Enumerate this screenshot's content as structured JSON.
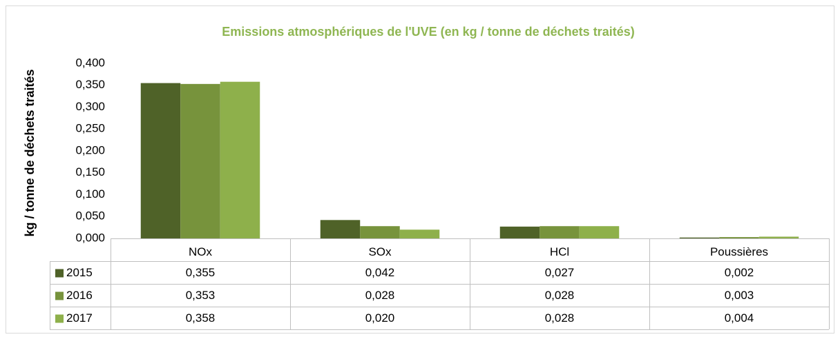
{
  "chart_data": {
    "type": "bar",
    "title": "Emissions atmosphériques de l'UVE (en kg / tonne de déchets traités)",
    "y_label": "kg / tonne de déchets traités",
    "categories": [
      "NOx",
      "SOx",
      "HCl",
      "Poussières"
    ],
    "series": [
      {
        "name": "2015",
        "color": "#4f6228",
        "values": [
          0.355,
          0.042,
          0.027,
          0.002
        ],
        "value_labels": [
          "0,355",
          "0,042",
          "0,027",
          "0,002"
        ]
      },
      {
        "name": "2016",
        "color": "#77933c",
        "values": [
          0.353,
          0.028,
          0.028,
          0.003
        ],
        "value_labels": [
          "0,353",
          "0,028",
          "0,028",
          "0,003"
        ]
      },
      {
        "name": "2017",
        "color": "#8eb04b",
        "values": [
          0.358,
          0.02,
          0.028,
          0.004
        ],
        "value_labels": [
          "0,358",
          "0,020",
          "0,028",
          "0,004"
        ]
      }
    ],
    "ylim": [
      0,
      0.4
    ],
    "yticks": [
      {
        "value": 0,
        "label": "0,000"
      },
      {
        "value": 0.05,
        "label": "0,050"
      },
      {
        "value": 0.1,
        "label": "0,100"
      },
      {
        "value": 0.15,
        "label": "0,150"
      },
      {
        "value": 0.2,
        "label": "0,200"
      },
      {
        "value": 0.25,
        "label": "0,250"
      },
      {
        "value": 0.3,
        "label": "0,300"
      },
      {
        "value": 0.35,
        "label": "0,350"
      },
      {
        "value": 0.4,
        "label": "0,400"
      }
    ],
    "grid": false,
    "data_table": true
  }
}
